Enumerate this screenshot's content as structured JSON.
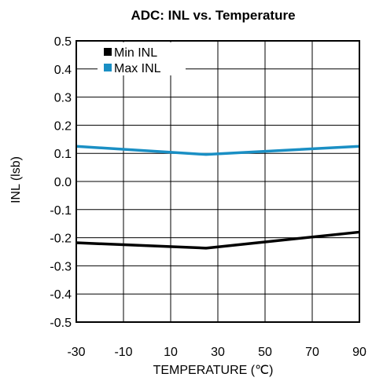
{
  "chart_data": {
    "type": "line",
    "title": "ADC: INL vs. Temperature",
    "xlabel": "TEMPERATURE (℃)",
    "ylabel": "INL (lsb)",
    "xlim": [
      -30,
      90
    ],
    "ylim": [
      -0.5,
      0.5
    ],
    "x_ticks": [
      "-30",
      "-10",
      "10",
      "30",
      "50",
      "70",
      "90"
    ],
    "y_ticks": [
      "0.5",
      "0.4",
      "0.3",
      "0.2",
      "0.1",
      "0.0",
      "-0.1",
      "-0.2",
      "-0.3",
      "-0.4",
      "-0.5"
    ],
    "grid": true,
    "legend_position": "top-left",
    "series": [
      {
        "name": "Min INL",
        "color": "#000000",
        "x": [
          -30,
          25,
          90
        ],
        "y": [
          -0.218,
          -0.237,
          -0.18
        ]
      },
      {
        "name": "Max INL",
        "color": "#1a8fc4",
        "x": [
          -30,
          25,
          90
        ],
        "y": [
          0.125,
          0.096,
          0.125
        ]
      }
    ]
  }
}
